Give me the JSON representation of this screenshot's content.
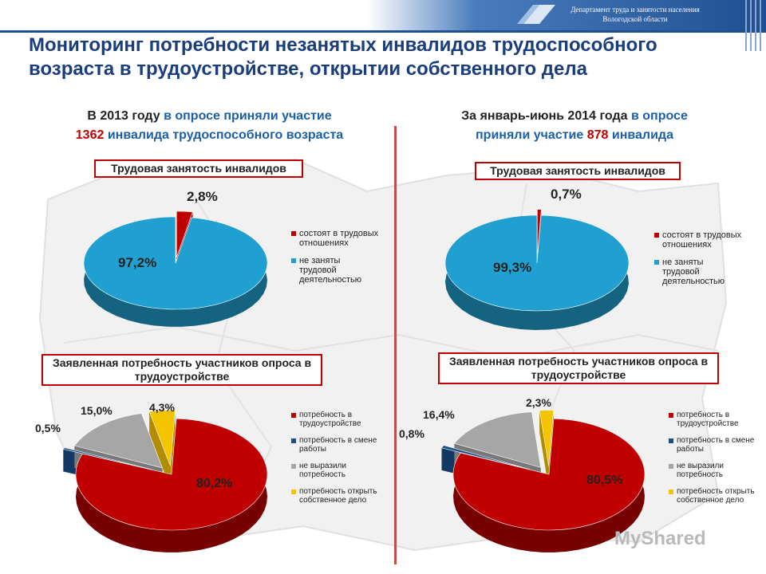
{
  "header": {
    "department_line1": "Департамент труда и занятости населения",
    "department_line2": "Вологодской области"
  },
  "title": "Мониторинг потребности незанятых инвалидов трудоспособного возраста в трудоустройстве, открытии собственного дела",
  "left": {
    "intro_a": "В 2013 году",
    "intro_b": " в опросе приняли участие",
    "intro_num": "1362",
    "intro_c": " инвалида трудоспособного возраста"
  },
  "right": {
    "intro_a": "За январь-июнь 2014 года",
    "intro_b": " в опросе",
    "intro_c": "приняли участие ",
    "intro_num": "878",
    "intro_d": " инвалида"
  },
  "legend_employment": [
    "состоят в трудовых отношениях",
    "не заняты трудовой деятельностью"
  ],
  "legend_needs": [
    "потребность в трудоустройстве",
    "потребность в смене работы",
    "не выразили потребность",
    "потребность открыть собственное дело"
  ],
  "colors": {
    "red": "#c00000",
    "blue": "#1fa0d0",
    "gray": "#a6a6a6",
    "yellow": "#f5c400",
    "darkblue": "#1a4f8a",
    "title": "#1a3d7c"
  },
  "watermark": "MyShared",
  "chart_data": [
    {
      "type": "pie",
      "title": "Трудовая занятость инвалидов",
      "categories": [
        "состоят в трудовых отношениях",
        "не заняты трудовой деятельностью"
      ],
      "values": [
        2.8,
        97.2
      ],
      "labels": [
        "2,8%",
        "97,2%"
      ]
    },
    {
      "type": "pie",
      "title": "Трудовая занятость инвалидов",
      "categories": [
        "состоят в трудовых отношениях",
        "не заняты трудовой деятельностью"
      ],
      "values": [
        0.7,
        99.3
      ],
      "labels": [
        "0,7%",
        "99,3%"
      ]
    },
    {
      "type": "pie",
      "title": "Заявленная потребность участников опроса в трудоустройстве",
      "categories": [
        "потребность в трудоустройстве",
        "потребность в смене работы",
        "не выразили потребность",
        "потребность открыть собственное дело"
      ],
      "values": [
        80.2,
        0.5,
        15.0,
        4.3
      ],
      "labels": [
        "80,2%",
        "0,5%",
        "15,0%",
        "4,3%"
      ]
    },
    {
      "type": "pie",
      "title": "Заявленная потребность участников опроса в трудоустройстве",
      "categories": [
        "потребность в трудоустройстве",
        "потребность в смене работы",
        "не выразили потребность",
        "потребность открыть собственное дело"
      ],
      "values": [
        80.5,
        0.8,
        16.4,
        2.3
      ],
      "labels": [
        "80,5%",
        "0,8%",
        "16,4%",
        "2,3%"
      ]
    }
  ]
}
